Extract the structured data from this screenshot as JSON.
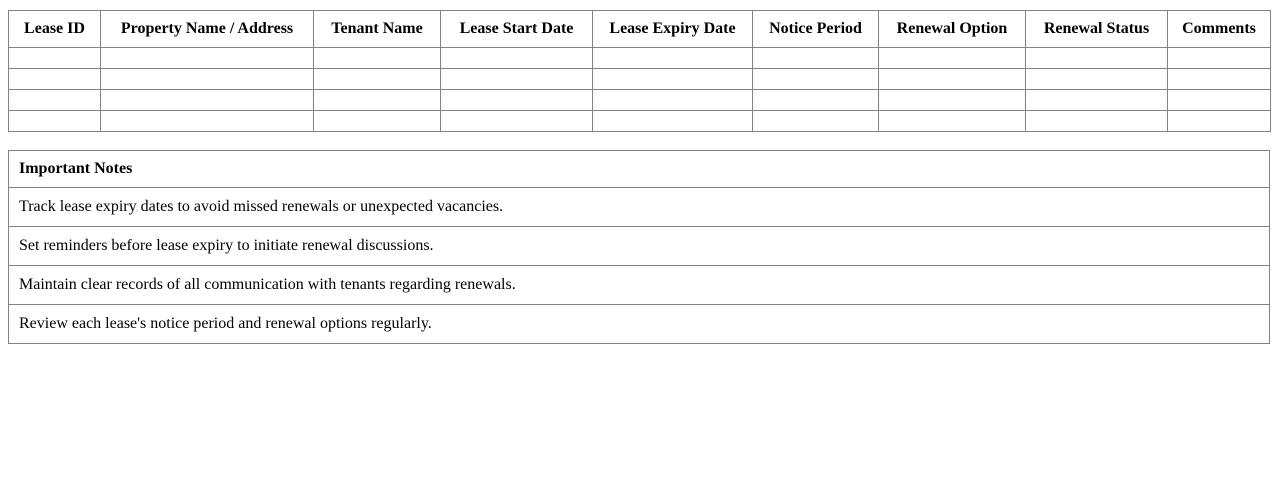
{
  "lease_table": {
    "headers": [
      "Lease ID",
      "Property Name / Address",
      "Tenant Name",
      "Lease Start Date",
      "Lease Expiry Date",
      "Notice Period",
      "Renewal Option",
      "Renewal Status",
      "Comments"
    ],
    "empty_row_count": 4
  },
  "notes_table": {
    "title": "Important Notes",
    "items": [
      "Track lease expiry dates to avoid missed renewals or unexpected vacancies.",
      "Set reminders before lease expiry to initiate renewal discussions.",
      "Maintain clear records of all communication with tenants regarding renewals.",
      "Review each lease's notice period and renewal options regularly."
    ]
  },
  "colors": {
    "border": "#828282",
    "text": "#000000",
    "background": "#ffffff"
  }
}
